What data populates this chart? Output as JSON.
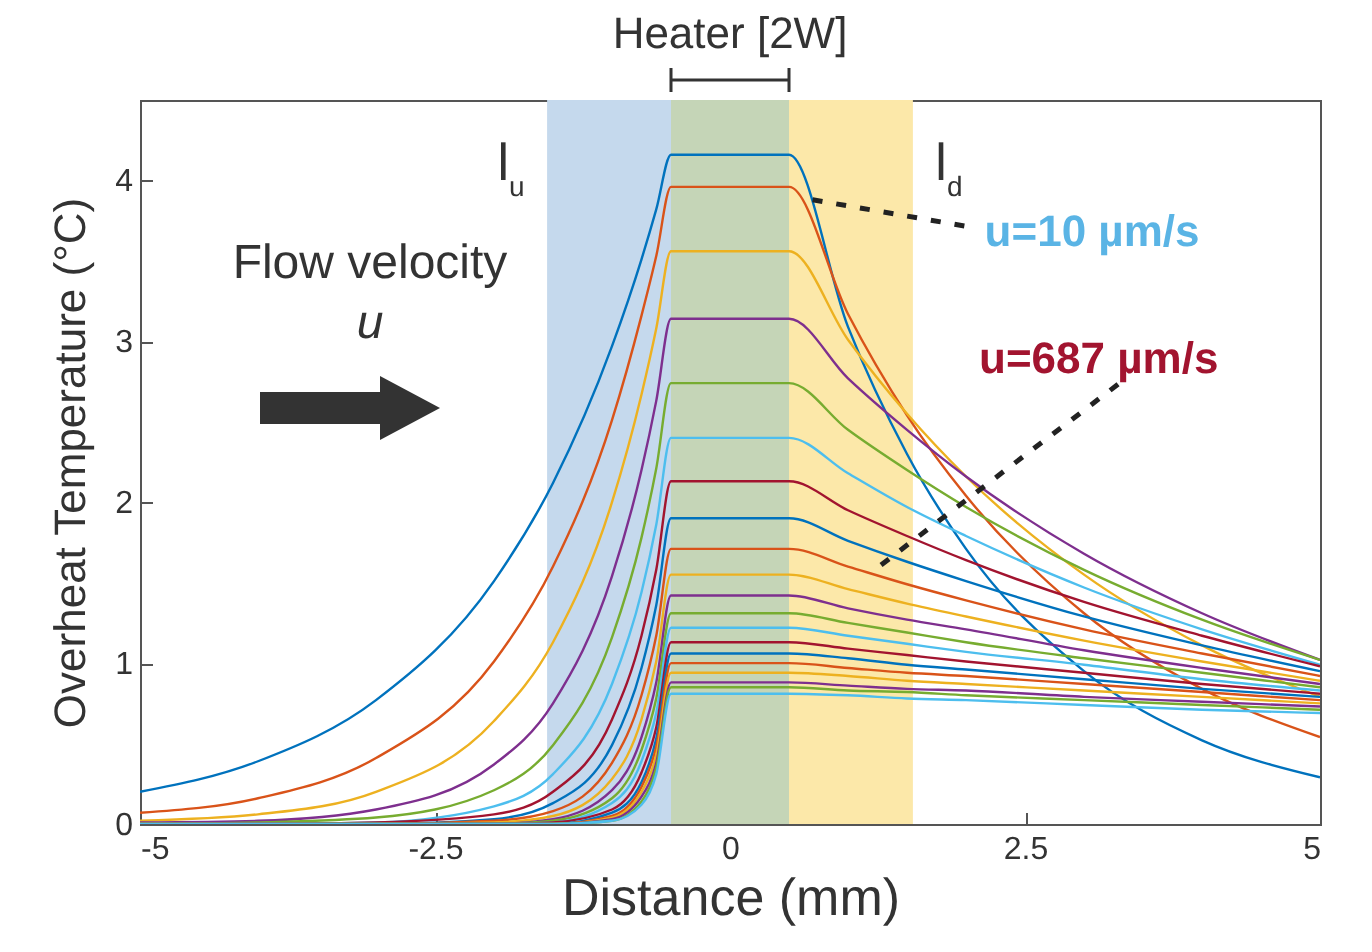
{
  "chart_data": {
    "type": "line",
    "xlabel": "Distance (mm)",
    "ylabel": "Overheat Temperature (°C)",
    "x": [
      -5,
      -4,
      -3,
      -2,
      -1.5,
      -1,
      -0.75,
      -0.625,
      -0.5,
      0.5,
      1,
      1.5,
      2,
      3,
      4,
      5
    ],
    "xlim": [
      -5,
      5
    ],
    "xticks": [
      -5,
      -2.5,
      0,
      2.5,
      5
    ],
    "ylim": [
      0,
      4.5
    ],
    "yticks": [
      0,
      1,
      2,
      3,
      4
    ],
    "series": [
      {
        "color": "#0072bd",
        "values": [
          0.2,
          0.39,
          0.77,
          1.51,
          2.12,
          2.97,
          3.51,
          3.82,
          4.16,
          4.16,
          3.09,
          2.3,
          1.71,
          0.95,
          0.52,
          0.29
        ]
      },
      {
        "color": "#d95319",
        "values": [
          0.07,
          0.16,
          0.41,
          1.01,
          1.6,
          2.51,
          3.16,
          3.53,
          3.96,
          3.96,
          3.17,
          2.54,
          2.04,
          1.31,
          0.84,
          0.54
        ]
      },
      {
        "color": "#edb120",
        "values": [
          0.02,
          0.06,
          0.2,
          0.64,
          1.13,
          2.0,
          2.67,
          3.08,
          3.56,
          3.56,
          3.01,
          2.55,
          2.16,
          1.55,
          1.11,
          0.79
        ]
      },
      {
        "color": "#7e2f8e",
        "values": [
          0.01,
          0.02,
          0.09,
          0.37,
          0.75,
          1.54,
          2.2,
          2.63,
          3.14,
          3.14,
          2.77,
          2.45,
          2.16,
          1.68,
          1.31,
          1.02
        ]
      },
      {
        "color": "#77ac30",
        "values": [
          0,
          0.01,
          0.04,
          0.21,
          0.49,
          1.16,
          1.78,
          2.21,
          2.74,
          2.74,
          2.45,
          2.2,
          1.97,
          1.58,
          1.27,
          1.02
        ]
      },
      {
        "color": "#4dbeee",
        "values": [
          0,
          0,
          0.01,
          0.11,
          0.31,
          0.87,
          1.44,
          1.86,
          2.4,
          2.4,
          2.18,
          1.97,
          1.79,
          1.47,
          1.21,
          0.99
        ]
      },
      {
        "color": "#a2142f",
        "values": [
          0,
          0,
          0.01,
          0.06,
          0.2,
          0.65,
          1.17,
          1.58,
          2.13,
          2.13,
          1.95,
          1.79,
          1.64,
          1.38,
          1.17,
          0.98
        ]
      },
      {
        "color": "#0072bd",
        "values": [
          0,
          0,
          0,
          0.03,
          0.13,
          0.49,
          0.97,
          1.36,
          1.9,
          1.9,
          1.76,
          1.63,
          1.51,
          1.29,
          1.11,
          0.95
        ]
      },
      {
        "color": "#d95319",
        "values": [
          0,
          0,
          0,
          0.02,
          0.08,
          0.38,
          0.8,
          1.17,
          1.71,
          1.71,
          1.6,
          1.49,
          1.39,
          1.21,
          1.06,
          0.92
        ]
      },
      {
        "color": "#edb120",
        "values": [
          0,
          0,
          0,
          0.01,
          0.05,
          0.28,
          0.65,
          1.01,
          1.55,
          1.55,
          1.46,
          1.37,
          1.29,
          1.14,
          1.01,
          0.89
        ]
      },
      {
        "color": "#7e2f8e",
        "values": [
          0,
          0,
          0,
          0,
          0.03,
          0.21,
          0.54,
          0.88,
          1.42,
          1.42,
          1.34,
          1.27,
          1.21,
          1.08,
          0.97,
          0.87
        ]
      },
      {
        "color": "#77ac30",
        "values": [
          0,
          0,
          0,
          0,
          0.02,
          0.16,
          0.46,
          0.78,
          1.31,
          1.31,
          1.25,
          1.19,
          1.13,
          1.03,
          0.94,
          0.85
        ]
      },
      {
        "color": "#4dbeee",
        "values": [
          0,
          0,
          0,
          0,
          0.01,
          0.13,
          0.39,
          0.69,
          1.22,
          1.22,
          1.17,
          1.12,
          1.07,
          0.99,
          0.9,
          0.83
        ]
      },
      {
        "color": "#a2142f",
        "values": [
          0,
          0,
          0,
          0,
          0.01,
          0.09,
          0.32,
          0.6,
          1.13,
          1.13,
          1.09,
          1.05,
          1.01,
          0.94,
          0.87,
          0.81
        ]
      },
      {
        "color": "#0072bd",
        "values": [
          0,
          0,
          0,
          0,
          0,
          0.07,
          0.26,
          0.53,
          1.06,
          1.06,
          1.03,
          0.99,
          0.96,
          0.9,
          0.84,
          0.79
        ]
      },
      {
        "color": "#d95319",
        "values": [
          0,
          0,
          0,
          0,
          0,
          0.05,
          0.23,
          0.48,
          1.0,
          1.0,
          0.97,
          0.94,
          0.92,
          0.87,
          0.82,
          0.77
        ]
      },
      {
        "color": "#edb120",
        "values": [
          0,
          0,
          0,
          0,
          0,
          0.04,
          0.2,
          0.43,
          0.94,
          0.94,
          0.92,
          0.89,
          0.87,
          0.83,
          0.79,
          0.75
        ]
      },
      {
        "color": "#7e2f8e",
        "values": [
          0,
          0,
          0,
          0,
          0,
          0.03,
          0.17,
          0.38,
          0.88,
          0.88,
          0.86,
          0.84,
          0.83,
          0.79,
          0.76,
          0.73
        ]
      },
      {
        "color": "#77ac30",
        "values": [
          0,
          0,
          0,
          0,
          0,
          0.02,
          0.14,
          0.35,
          0.85,
          0.85,
          0.83,
          0.82,
          0.8,
          0.77,
          0.74,
          0.71
        ]
      },
      {
        "color": "#4dbeee",
        "values": [
          0,
          0,
          0,
          0,
          0,
          0.02,
          0.12,
          0.31,
          0.81,
          0.81,
          0.8,
          0.78,
          0.77,
          0.74,
          0.71,
          0.69
        ]
      }
    ],
    "bands": [
      {
        "axis": "x",
        "from": -1.55,
        "to": -0.5,
        "label": "l$_{u}$",
        "color": "#c5d9ed"
      },
      {
        "axis": "x",
        "from": -0.5,
        "to": 0.5,
        "label": "Heater [2W]",
        "color": "#c5d5b7"
      },
      {
        "axis": "x",
        "from": 0.5,
        "to": 1.55,
        "label": "l$_{d}$",
        "color": "#fce8a9"
      }
    ],
    "annotations": [
      {
        "text": "u=10 µm/s",
        "x": 0.7,
        "y": 3.88
      },
      {
        "text": "u=687 µm/s",
        "x": 1.28,
        "y": 1.61
      },
      "Flow velocity",
      "u"
    ]
  }
}
